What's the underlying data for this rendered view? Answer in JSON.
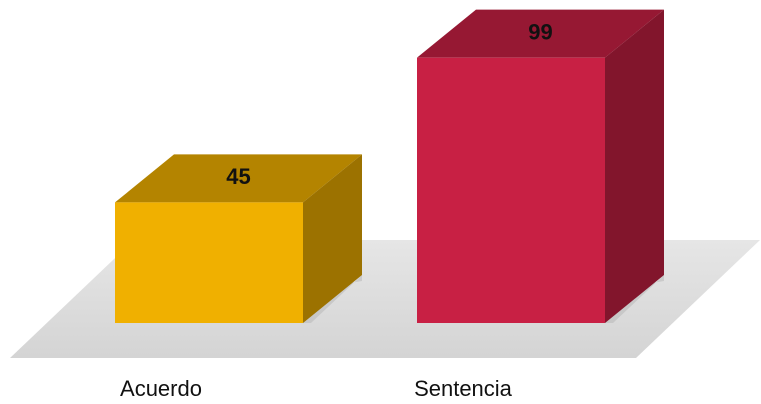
{
  "chart_data": {
    "type": "bar3d",
    "categories": [
      "Acuerdo",
      "Sentencia"
    ],
    "values": [
      45,
      99
    ],
    "colors": [
      "#f0b000",
      "#c82044"
    ]
  }
}
